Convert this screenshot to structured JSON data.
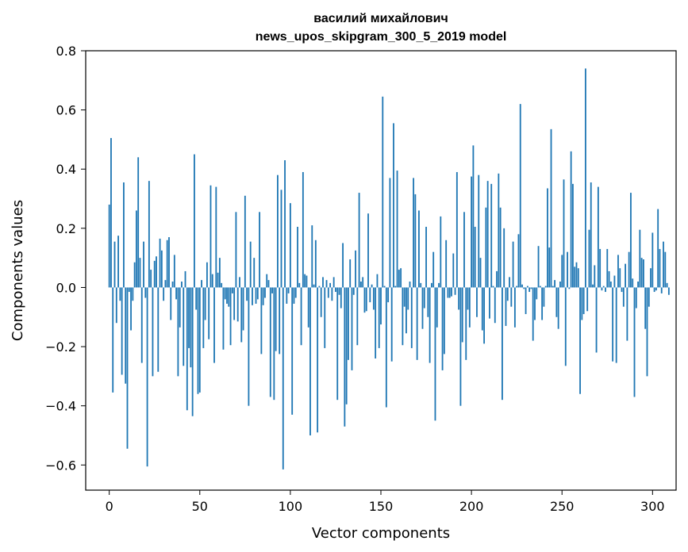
{
  "chart_data": {
    "type": "bar",
    "title": "василий михайлович",
    "subtitle": "news_upos_skipgram_300_5_2019 model",
    "xlabel": "Vector components",
    "ylabel": "Components values",
    "xlim": [
      -13,
      313
    ],
    "ylim": [
      -0.685,
      0.8
    ],
    "xticks": [
      0,
      50,
      100,
      150,
      200,
      250,
      300
    ],
    "xtick_labels": [
      "0",
      "50",
      "100",
      "150",
      "200",
      "250",
      "300"
    ],
    "yticks": [
      0.8,
      0.6,
      0.4,
      0.2,
      0.0,
      -0.2,
      -0.4,
      -0.6
    ],
    "ytick_labels": [
      "0.8",
      "0.6",
      "0.4",
      "0.2",
      "0.0",
      "−0.2",
      "−0.4",
      "−0.6"
    ],
    "grid": false,
    "bar_color": "#1f77b4",
    "values": [
      0.28,
      0.505,
      -0.355,
      0.155,
      -0.12,
      0.175,
      -0.045,
      -0.295,
      0.355,
      -0.325,
      -0.545,
      -0.015,
      -0.145,
      -0.045,
      0.085,
      0.26,
      0.44,
      0.1,
      -0.255,
      0.155,
      -0.035,
      -0.605,
      0.36,
      0.06,
      -0.3,
      0.09,
      0.105,
      -0.285,
      0.165,
      0.125,
      -0.045,
      0.025,
      0.16,
      0.17,
      -0.11,
      0.02,
      0.11,
      -0.04,
      -0.3,
      -0.135,
      0.02,
      -0.265,
      0.055,
      -0.415,
      -0.205,
      -0.27,
      -0.435,
      0.45,
      -0.075,
      -0.36,
      -0.355,
      0.025,
      -0.205,
      -0.11,
      0.085,
      -0.175,
      0.345,
      0.045,
      -0.255,
      0.34,
      0.05,
      0.1,
      0.015,
      -0.21,
      -0.04,
      -0.055,
      -0.065,
      -0.195,
      -0.02,
      -0.11,
      0.255,
      -0.115,
      0.035,
      -0.185,
      -0.145,
      0.31,
      -0.045,
      -0.4,
      0.155,
      -0.06,
      0.1,
      -0.055,
      -0.04,
      0.255,
      -0.225,
      -0.06,
      -0.035,
      0.045,
      0.025,
      -0.37,
      -0.02,
      -0.38,
      -0.215,
      0.38,
      -0.225,
      0.33,
      -0.615,
      0.43,
      -0.055,
      -0.02,
      0.285,
      -0.43,
      -0.055,
      -0.035,
      0.205,
      0.015,
      -0.195,
      0.39,
      0.045,
      0.04,
      -0.135,
      -0.5,
      0.21,
      0.01,
      0.16,
      -0.49,
      0.005,
      -0.1,
      0.035,
      -0.205,
      0.025,
      -0.035,
      0.015,
      -0.045,
      0.035,
      -0.015,
      -0.38,
      -0.025,
      -0.07,
      0.15,
      -0.47,
      -0.395,
      -0.245,
      0.095,
      -0.28,
      -0.025,
      0.125,
      -0.195,
      0.32,
      0.02,
      0.035,
      -0.085,
      -0.08,
      0.25,
      -0.05,
      0.01,
      -0.075,
      -0.24,
      0.045,
      -0.205,
      -0.125,
      0.645,
      0.005,
      -0.405,
      -0.05,
      0.37,
      -0.25,
      0.555,
      0.005,
      0.395,
      0.06,
      0.065,
      -0.195,
      -0.065,
      -0.155,
      -0.075,
      0.02,
      -0.205,
      0.37,
      0.315,
      -0.245,
      0.26,
      0.015,
      -0.14,
      -0.07,
      0.205,
      -0.1,
      -0.255,
      0.015,
      0.12,
      -0.45,
      -0.135,
      0.015,
      0.24,
      -0.28,
      -0.225,
      0.16,
      -0.035,
      -0.035,
      -0.03,
      0.115,
      -0.025,
      0.39,
      -0.075,
      -0.4,
      -0.185,
      0.255,
      -0.245,
      -0.075,
      -0.135,
      0.375,
      0.48,
      0.205,
      -0.1,
      0.38,
      0.1,
      -0.145,
      -0.19,
      0.27,
      0.36,
      -0.105,
      0.35,
      0.005,
      -0.12,
      0.055,
      0.385,
      0.27,
      -0.38,
      0.2,
      -0.13,
      -0.045,
      0.035,
      -0.065,
      0.155,
      -0.135,
      0.005,
      0.18,
      0.62,
      0.01,
      -0.005,
      -0.09,
      0.005,
      -0.015,
      -0.005,
      -0.18,
      -0.11,
      -0.04,
      0.14,
      0.005,
      -0.11,
      -0.065,
      0.005,
      0.335,
      0.135,
      0.535,
      0.005,
      0.025,
      -0.1,
      -0.14,
      0.02,
      0.11,
      0.365,
      -0.265,
      0.12,
      -0.005,
      0.46,
      0.35,
      0.07,
      0.085,
      0.065,
      -0.36,
      -0.11,
      -0.09,
      0.74,
      -0.08,
      0.195,
      0.355,
      0.01,
      0.075,
      -0.22,
      0.34,
      0.13,
      -0.01,
      0.005,
      -0.015,
      0.13,
      0.055,
      0.02,
      -0.25,
      0.04,
      -0.255,
      0.11,
      0.065,
      -0.015,
      -0.065,
      0.08,
      -0.18,
      0.12,
      0.32,
      0.03,
      -0.37,
      -0.07,
      0.02,
      0.195,
      0.1,
      0.095,
      -0.14,
      -0.3,
      -0.065,
      0.065,
      0.185,
      -0.015,
      -0.01,
      0.265,
      0.13,
      -0.02,
      0.155,
      0.12,
      0.015,
      -0.025
    ]
  }
}
